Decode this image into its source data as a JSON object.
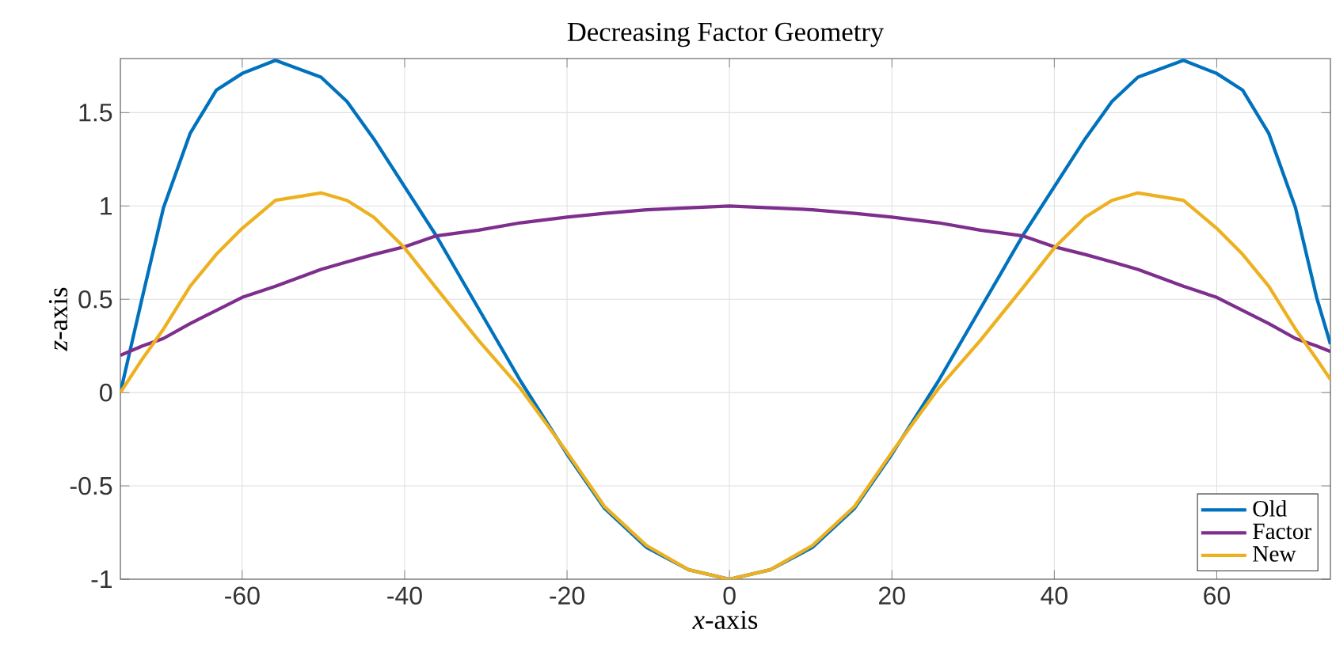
{
  "chart_data": {
    "type": "line",
    "title": "Decreasing Factor Geometry",
    "xlabel": "*x*-axis",
    "ylabel": "*z*-axis",
    "x": [
      -75,
      -72.3,
      -69.7,
      -66.4,
      -63.2,
      -60,
      -55.9,
      -50.3,
      -47.1,
      -43.8,
      -40.1,
      -36.1,
      -30.9,
      -25.7,
      -20,
      -15.4,
      -10.2,
      -5,
      0,
      5,
      10.2,
      15.4,
      20,
      25.7,
      30.9,
      36.1,
      40.1,
      43.8,
      47.1,
      50.3,
      55.9,
      60,
      63.2,
      66.4,
      69.7,
      72.3,
      74
    ],
    "series": [
      {
        "name": "Old",
        "color": "#0072bd",
        "values": [
          0,
          0.51,
          0.99,
          1.39,
          1.62,
          1.71,
          1.78,
          1.69,
          1.56,
          1.36,
          1.11,
          0.84,
          0.45,
          0.06,
          -0.33,
          -0.62,
          -0.83,
          -0.95,
          -1,
          -0.95,
          -0.83,
          -0.62,
          -0.33,
          0.06,
          0.45,
          0.84,
          1.11,
          1.36,
          1.56,
          1.69,
          1.78,
          1.71,
          1.62,
          1.39,
          0.99,
          0.51,
          0.26
        ]
      },
      {
        "name": "Factor",
        "color": "#7e2f8e",
        "values": [
          0.2,
          0.25,
          0.29,
          0.37,
          0.44,
          0.51,
          0.57,
          0.66,
          0.7,
          0.74,
          0.78,
          0.84,
          0.87,
          0.91,
          0.94,
          0.96,
          0.98,
          0.99,
          1,
          0.99,
          0.98,
          0.96,
          0.94,
          0.91,
          0.87,
          0.84,
          0.78,
          0.74,
          0.7,
          0.66,
          0.57,
          0.51,
          0.44,
          0.37,
          0.29,
          0.25,
          0.22
        ]
      },
      {
        "name": "New",
        "color": "#edb120",
        "values": [
          0,
          0.18,
          0.34,
          0.57,
          0.74,
          0.88,
          1.03,
          1.07,
          1.03,
          0.94,
          0.78,
          0.56,
          0.28,
          0.02,
          -0.32,
          -0.61,
          -0.82,
          -0.95,
          -1,
          -0.95,
          -0.82,
          -0.61,
          -0.32,
          0.02,
          0.28,
          0.56,
          0.78,
          0.94,
          1.03,
          1.07,
          1.03,
          0.88,
          0.74,
          0.57,
          0.34,
          0.18,
          0.07
        ]
      }
    ],
    "xlim": [
      -75,
      74
    ],
    "ylim": [
      -1,
      1.79
    ],
    "xticks": [
      -60,
      -40,
      -20,
      0,
      20,
      40,
      60
    ],
    "yticks": [
      -1,
      -0.5,
      0,
      0.5,
      1,
      1.5
    ],
    "grid": true,
    "legend": "bottom right"
  }
}
